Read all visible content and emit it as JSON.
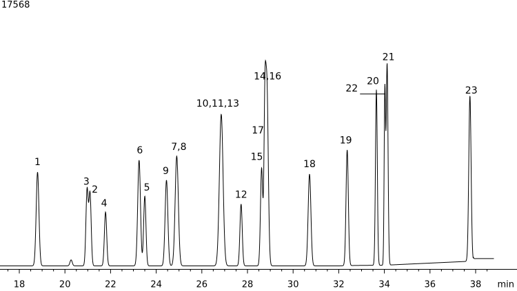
{
  "chart_data": {
    "type": "line",
    "corner_value": "17568",
    "xlabel": "min",
    "ylabel": "",
    "xlim": [
      17.0,
      38.8
    ],
    "ylim": [
      0,
      100
    ],
    "x_ticks": [
      18,
      20,
      22,
      24,
      26,
      28,
      30,
      32,
      34,
      36,
      38
    ],
    "grid": false,
    "peaks": [
      {
        "label": "1",
        "x": 18.8,
        "y": 47,
        "w": 0.06
      },
      {
        "label": "",
        "x": 20.27,
        "y": 3,
        "w": 0.05
      },
      {
        "label": "3",
        "x": 20.97,
        "y": 38,
        "w": 0.05
      },
      {
        "label": "2",
        "x": 21.1,
        "y": 36,
        "w": 0.05
      },
      {
        "label": "4",
        "x": 21.78,
        "y": 27,
        "w": 0.05
      },
      {
        "label": "6",
        "x": 23.25,
        "y": 53,
        "w": 0.06
      },
      {
        "label": "5",
        "x": 23.5,
        "y": 35,
        "w": 0.05
      },
      {
        "label": "9",
        "x": 24.45,
        "y": 43,
        "w": 0.06
      },
      {
        "label": "7,8",
        "x": 24.9,
        "y": 55,
        "w": 0.07
      },
      {
        "label": "10,11,13",
        "x": 26.85,
        "y": 76,
        "w": 0.08
      },
      {
        "label": "12",
        "x": 27.72,
        "y": 31,
        "w": 0.05
      },
      {
        "label": "15",
        "x": 28.62,
        "y": 49,
        "w": 0.05
      },
      {
        "label": "17",
        "x": 28.76,
        "y": 63,
        "w": 0.04
      },
      {
        "label": "14,16",
        "x": 28.85,
        "y": 91,
        "w": 0.06
      },
      {
        "label": "18",
        "x": 30.72,
        "y": 46,
        "w": 0.06
      },
      {
        "label": "19",
        "x": 32.37,
        "y": 58,
        "w": 0.05
      },
      {
        "label": "20",
        "x": 33.65,
        "y": 88,
        "w": 0.04
      },
      {
        "label": "22",
        "x": 34.02,
        "y": 86,
        "w": 0.03
      },
      {
        "label": "21",
        "x": 34.12,
        "y": 101,
        "w": 0.04
      },
      {
        "label": "23",
        "x": 37.75,
        "y": 83,
        "w": 0.05
      }
    ]
  }
}
